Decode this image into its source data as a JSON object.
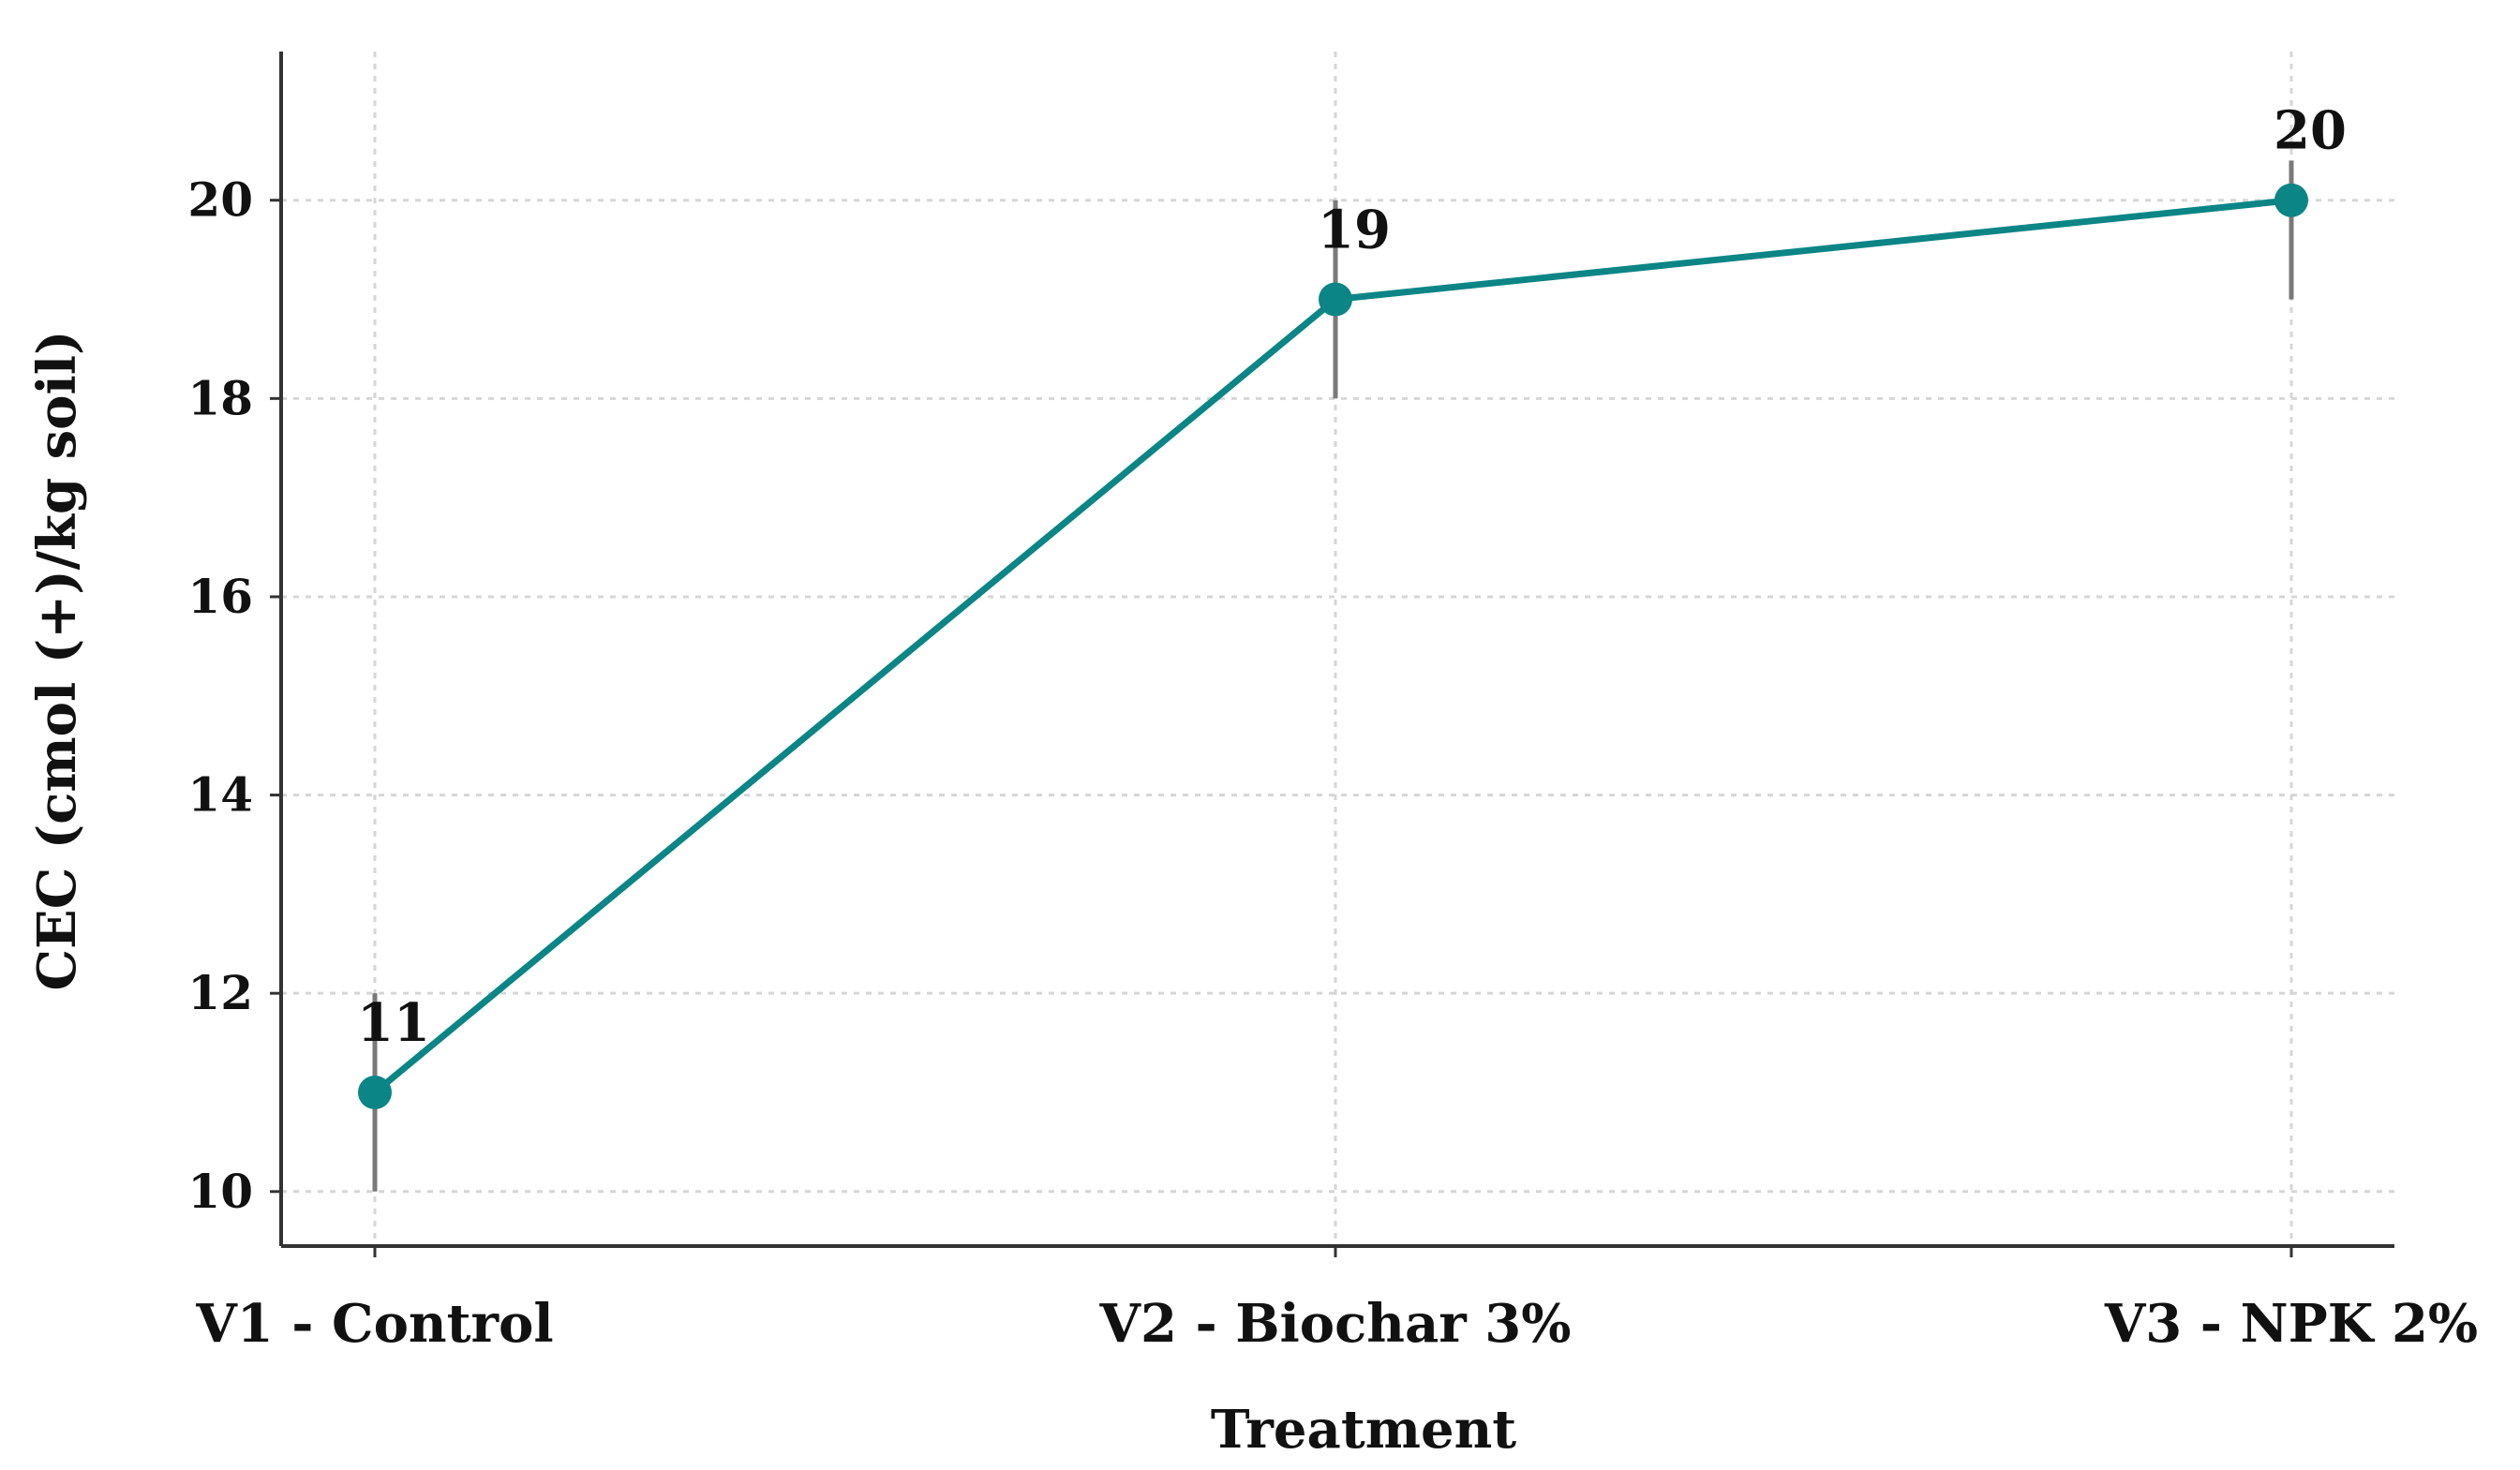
{
  "chart_data": {
    "type": "line",
    "categories": [
      "V1 - Control",
      "V2 - Biochar 3%",
      "V3 - NPK 2%"
    ],
    "series": [
      {
        "values": [
          11,
          19,
          20
        ],
        "error": [
          [
            10,
            12
          ],
          [
            18,
            20
          ],
          [
            19,
            20.4
          ]
        ]
      }
    ],
    "data_labels": [
      "11",
      "19",
      "20"
    ],
    "title": "",
    "xlabel": "Treatment",
    "ylabel": "CEC (cmol (+)/kg soil)",
    "ylim": [
      9.45,
      21.5
    ],
    "yticks": [
      10,
      12,
      14,
      16,
      18,
      20
    ],
    "ytick_labels": [
      "10",
      "12",
      "14",
      "16",
      "18",
      "20"
    ],
    "grid": true,
    "colors": {
      "line": "#0b8585",
      "marker": "#0b8585",
      "error_bar": "#7a7a7a",
      "grid": "#d6d6d6",
      "axis": "#333333"
    }
  }
}
